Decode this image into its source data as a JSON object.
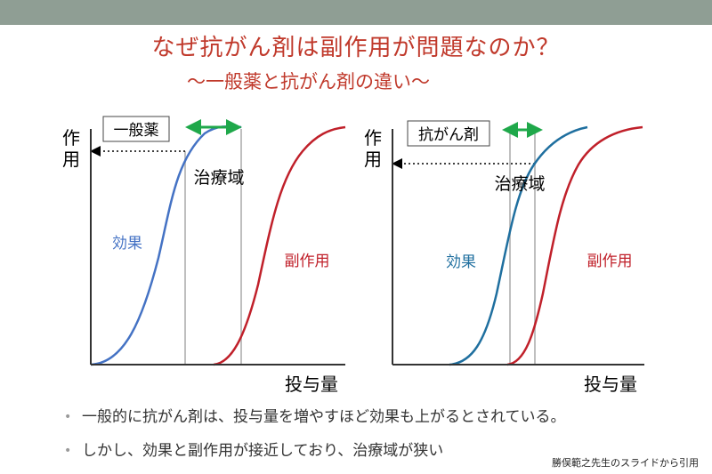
{
  "title": "なぜ抗がん剤は副作用が問題なのか？",
  "subtitle": "～一般薬と抗がん剤の違い～",
  "left_chart": {
    "box_label": "一般薬",
    "y_axis_label": "作用",
    "x_axis_label": "投与量",
    "window_label": "治療域",
    "effect_label": "効果",
    "side_effect_label": "副作用"
  },
  "right_chart": {
    "box_label": "抗がん剤",
    "y_axis_label": "作用",
    "x_axis_label": "投与量",
    "window_label": "治療域",
    "effect_label": "効果",
    "side_effect_label": "副作用"
  },
  "colors": {
    "title": "#c0392b",
    "effect_curve": "#4472c4",
    "effect_curve_right": "#1f6f9f",
    "side_effect_curve": "#c0202a",
    "window_arrow": "#1fa84a",
    "guide_line": "#bfbfbf"
  },
  "bullets": [
    "一般的に抗がん剤は、投与量を増やすほど効果も上がるとされている。",
    "しかし、効果と副作用が接近しており、治療域が狭い"
  ],
  "credit": "勝俣範之先生のスライドから引用"
}
